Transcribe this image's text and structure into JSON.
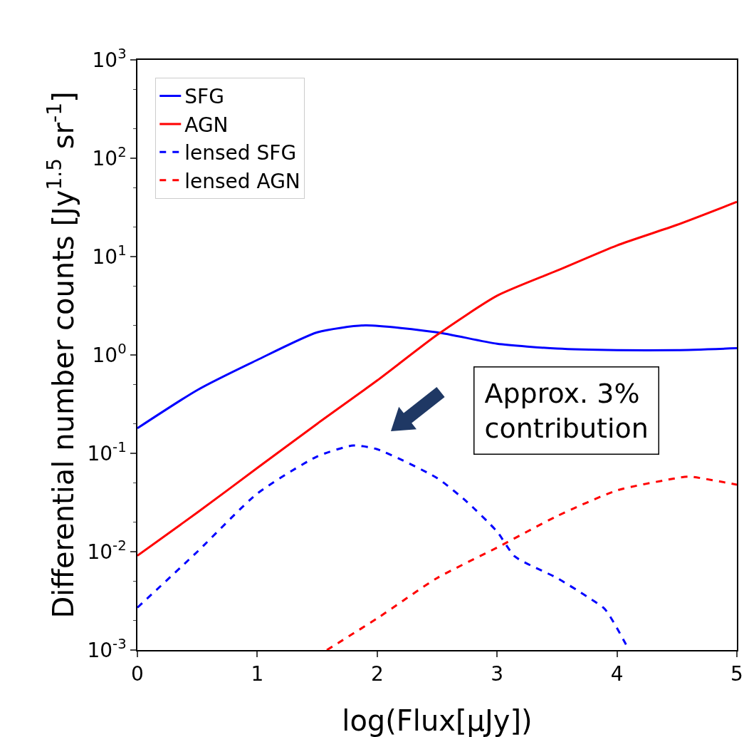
{
  "chart_data": {
    "type": "line",
    "xlabel": "log(Flux[μJy])",
    "ylabel": "Differential number counts [Jy$^{1.5}$ sr$^{-1}$]",
    "log": "y",
    "legend": "top left",
    "xlim": [
      0,
      5
    ],
    "xticks": [
      0,
      1,
      2,
      3,
      4,
      5
    ],
    "ylim": [
      0.001,
      1000
    ],
    "yticks": [
      {
        "value": 0.001,
        "label": "10$^{-3}$"
      },
      {
        "value": 0.01,
        "label": "10$^{-2}$"
      },
      {
        "value": 0.1,
        "label": "10$^{-1}$"
      },
      {
        "value": 1,
        "label": "10$^{0}$"
      },
      {
        "value": 10,
        "label": "10$^{1}$"
      },
      {
        "value": 100,
        "label": "10$^{2}$"
      },
      {
        "value": 1000,
        "label": "10$^{3}$"
      }
    ],
    "series": [
      {
        "name": "SFG",
        "color": "#0000ff",
        "line_style": "solid",
        "x": [
          0,
          0.5,
          1,
          1.5,
          1.9,
          2.5,
          3,
          3.5,
          4,
          4.5,
          5
        ],
        "values": [
          0.18,
          0.44,
          0.89,
          1.7,
          2.0,
          1.7,
          1.3,
          1.16,
          1.12,
          1.12,
          1.17
        ]
      },
      {
        "name": "AGN",
        "color": "#ff0000",
        "line_style": "solid",
        "x": [
          0,
          0.5,
          1,
          1.5,
          2,
          2.5,
          3,
          3.5,
          4,
          4.5,
          5
        ],
        "values": [
          0.0091,
          0.025,
          0.071,
          0.2,
          0.55,
          1.6,
          4.0,
          7.2,
          13,
          21,
          36
        ]
      },
      {
        "name": "lensed SFG",
        "color": "#0000ff",
        "line_style": "dashed",
        "x": [
          0,
          0.5,
          1,
          1.5,
          1.8,
          2,
          2.5,
          2.75,
          3,
          3.15,
          3.5,
          3.75,
          3.9,
          4.1
        ],
        "values": [
          0.0027,
          0.01,
          0.039,
          0.093,
          0.12,
          0.11,
          0.056,
          0.032,
          0.016,
          0.0089,
          0.0054,
          0.0035,
          0.0026,
          0.001
        ]
      },
      {
        "name": "lensed AGN",
        "color": "#ff0000",
        "line_style": "dashed",
        "x": [
          1.58,
          2,
          2.5,
          3,
          3.5,
          4,
          4.5,
          4.6,
          5
        ],
        "values": [
          0.001,
          0.0021,
          0.0054,
          0.011,
          0.023,
          0.042,
          0.056,
          0.058,
          0.048
        ]
      }
    ],
    "annotations": [
      "Approx. 3%\ncontribution"
    ]
  }
}
